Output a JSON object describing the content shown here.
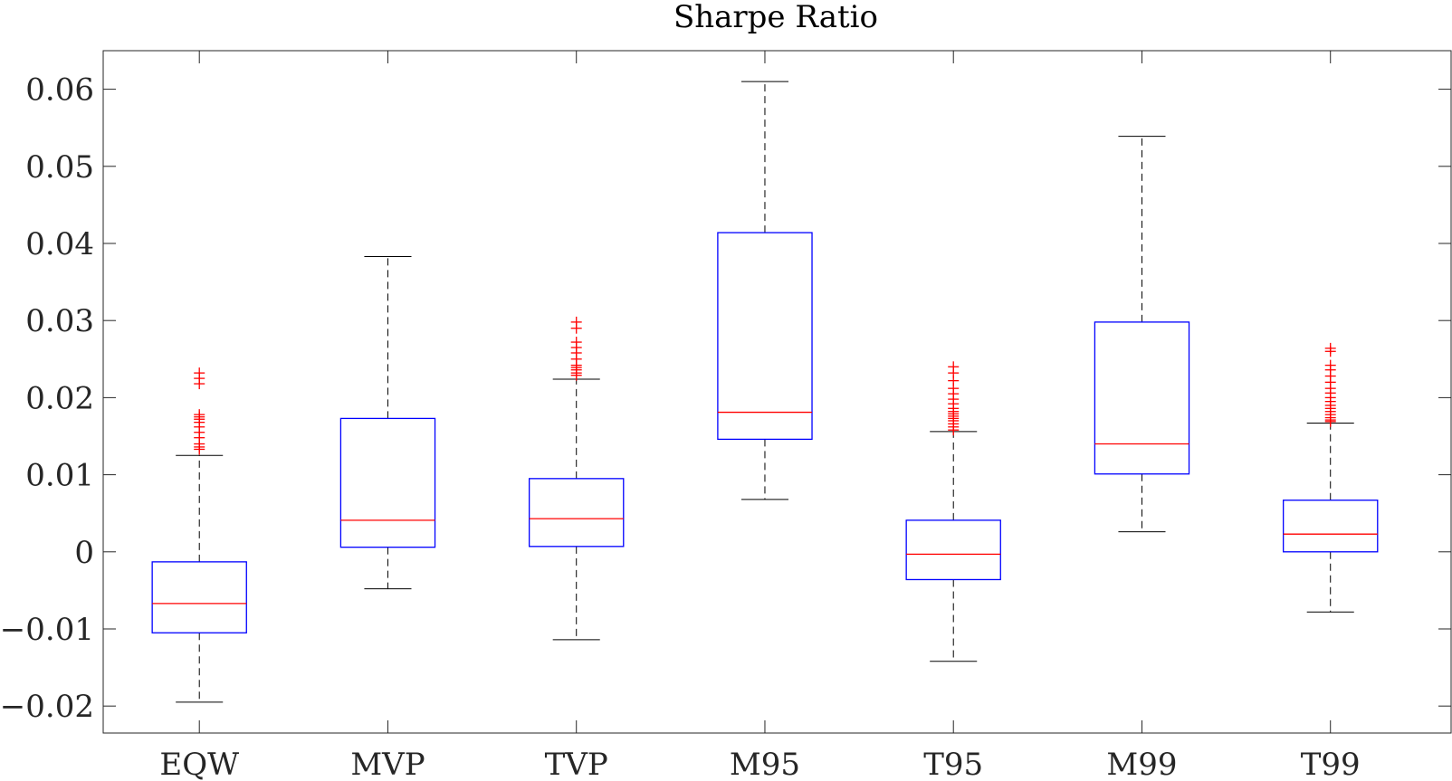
{
  "chart_data": {
    "type": "boxplot",
    "title": "Sharpe Ratio",
    "xlabel": "",
    "ylabel": "",
    "ylim": [
      -0.0235,
      0.065
    ],
    "yticks": [
      -0.02,
      -0.01,
      0,
      0.01,
      0.02,
      0.03,
      0.04,
      0.05,
      0.06
    ],
    "ytick_labels": [
      "−0.02",
      "−0.01",
      "0",
      "0.01",
      "0.02",
      "0.03",
      "0.04",
      "0.05",
      "0.06"
    ],
    "categories": [
      "EQW",
      "MVP",
      "TVP",
      "M95",
      "T95",
      "M99",
      "T99"
    ],
    "boxes": [
      {
        "name": "EQW",
        "whisker_low": -0.0195,
        "q1": -0.0105,
        "median": -0.0067,
        "q3": -0.0013,
        "whisker_high": 0.0125,
        "outliers": [
          0.0232,
          0.0225,
          0.0218,
          0.0178,
          0.0175,
          0.0172,
          0.0168,
          0.0162,
          0.0155,
          0.0148,
          0.014,
          0.0136,
          0.0133
        ]
      },
      {
        "name": "MVP",
        "whisker_low": -0.0048,
        "q1": 0.0006,
        "median": 0.0041,
        "q3": 0.0173,
        "whisker_high": 0.0383,
        "outliers": []
      },
      {
        "name": "TVP",
        "whisker_low": -0.0114,
        "q1": 0.0007,
        "median": 0.0043,
        "q3": 0.0095,
        "whisker_high": 0.0224,
        "outliers": [
          0.0298,
          0.029,
          0.0272,
          0.0265,
          0.0258,
          0.025,
          0.0242,
          0.0239,
          0.0236,
          0.0232,
          0.0229
        ]
      },
      {
        "name": "M95",
        "whisker_low": 0.0068,
        "q1": 0.0146,
        "median": 0.0181,
        "q3": 0.0414,
        "whisker_high": 0.061,
        "outliers": []
      },
      {
        "name": "T95",
        "whisker_low": -0.0142,
        "q1": -0.0036,
        "median": -0.0003,
        "q3": 0.0041,
        "whisker_high": 0.0156,
        "outliers": [
          0.024,
          0.0232,
          0.0222,
          0.0212,
          0.0205,
          0.0198,
          0.0192,
          0.0186,
          0.0182,
          0.0179,
          0.0176,
          0.0173,
          0.017,
          0.0166,
          0.0162,
          0.0158
        ]
      },
      {
        "name": "M99",
        "whisker_low": 0.0026,
        "q1": 0.0101,
        "median": 0.014,
        "q3": 0.0298,
        "whisker_high": 0.0539,
        "outliers": []
      },
      {
        "name": "T99",
        "whisker_low": -0.0078,
        "q1": 0.0,
        "median": 0.0023,
        "q3": 0.0067,
        "whisker_high": 0.0167,
        "outliers": [
          0.0264,
          0.026,
          0.0242,
          0.0236,
          0.0228,
          0.022,
          0.0212,
          0.0206,
          0.02,
          0.0195,
          0.019,
          0.0186,
          0.0182,
          0.0178,
          0.0174,
          0.0171,
          0.0169
        ]
      }
    ],
    "grid": false,
    "colors": {
      "box": "#0000ff",
      "median": "#ff0000",
      "outlier": "#ff0000",
      "whisker": "#000000",
      "axis": "#262626"
    }
  }
}
